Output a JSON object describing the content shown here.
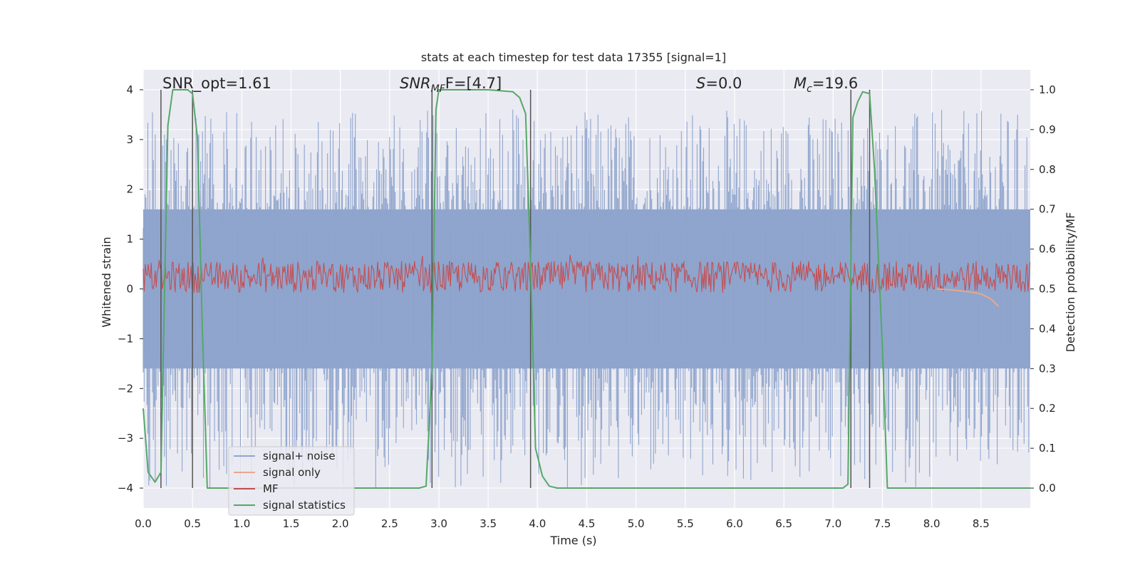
{
  "chart_data": {
    "type": "line",
    "title": "stats at each timestep for test data 17355 [signal=1]",
    "xlabel": "Time (s)",
    "ylabel": "Whitened strain",
    "ylabel_right": "Detection probability/MF",
    "xlim": [
      0.0,
      9.0
    ],
    "ylim": [
      -4.4,
      4.4
    ],
    "ylim_right": [
      -0.05,
      1.05
    ],
    "xticks": [
      "0.0",
      "0.5",
      "1.0",
      "1.5",
      "2.0",
      "2.5",
      "3.0",
      "3.5",
      "4.0",
      "4.5",
      "5.0",
      "5.5",
      "6.0",
      "6.5",
      "7.0",
      "7.5",
      "8.0",
      "8.5"
    ],
    "yticks": [
      "−4",
      "−3",
      "−2",
      "−1",
      "0",
      "1",
      "2",
      "3",
      "4"
    ],
    "yticks_right": [
      "0.0",
      "0.1",
      "0.2",
      "0.3",
      "0.4",
      "0.5",
      "0.6",
      "0.7",
      "0.8",
      "0.9",
      "1.0"
    ],
    "grid": true,
    "legend_position": "lower-left",
    "annotations": {
      "snr_opt": "SNR_opt=1.61",
      "snr_mf_main": "SNR",
      "snr_mf_sub": "MF",
      "snr_mf_rest": "F=[4.7]",
      "s_main": "S",
      "s_rest": "=0.0",
      "mc_main": "M",
      "mc_sub": "c",
      "mc_rest": "=19.6"
    },
    "detection_boundaries": [
      0.18,
      0.5,
      2.93,
      3.93,
      7.18,
      7.37
    ],
    "series": [
      {
        "name": "signal+ noise",
        "color": "#8fa5cd",
        "description_range": [
          -4.0,
          3.6
        ],
        "envelope": {
          "x": [
            0.0,
            9.0
          ],
          "upper": 1.6,
          "lower": -1.6
        }
      },
      {
        "name": "signal only",
        "color": "#e8a88a",
        "x": [
          8.05,
          8.2,
          8.35,
          8.5,
          8.6,
          8.65,
          8.68
        ],
        "y": [
          0.0,
          -0.02,
          -0.05,
          -0.1,
          -0.2,
          -0.3,
          -0.35
        ]
      },
      {
        "name": "MF",
        "color": "#c44e52",
        "axis": "right",
        "baseline": 0.53,
        "amplitude": 0.04,
        "max": 0.62
      },
      {
        "name": "signal statistics",
        "color": "#55a868",
        "axis": "right",
        "x": [
          0.0,
          0.05,
          0.12,
          0.18,
          0.25,
          0.3,
          0.35,
          0.45,
          0.5,
          0.55,
          0.6,
          0.65,
          0.7,
          2.8,
          2.87,
          2.93,
          2.97,
          3.0,
          3.1,
          3.5,
          3.75,
          3.82,
          3.88,
          3.93,
          3.98,
          4.05,
          4.12,
          4.2,
          7.1,
          7.15,
          7.2,
          7.25,
          7.3,
          7.37,
          7.42,
          7.5,
          7.55,
          9.0
        ],
        "y": [
          0.2,
          0.04,
          0.015,
          0.04,
          0.91,
          1.0,
          1.0,
          1.0,
          0.99,
          0.88,
          0.4,
          0.0,
          0.0,
          0.0,
          0.005,
          0.3,
          0.95,
          1.0,
          1.0,
          1.0,
          0.995,
          0.98,
          0.94,
          0.56,
          0.1,
          0.03,
          0.005,
          0.0,
          0.0,
          0.01,
          0.93,
          0.97,
          0.995,
          0.99,
          0.8,
          0.35,
          0.0,
          0.0
        ]
      }
    ]
  }
}
